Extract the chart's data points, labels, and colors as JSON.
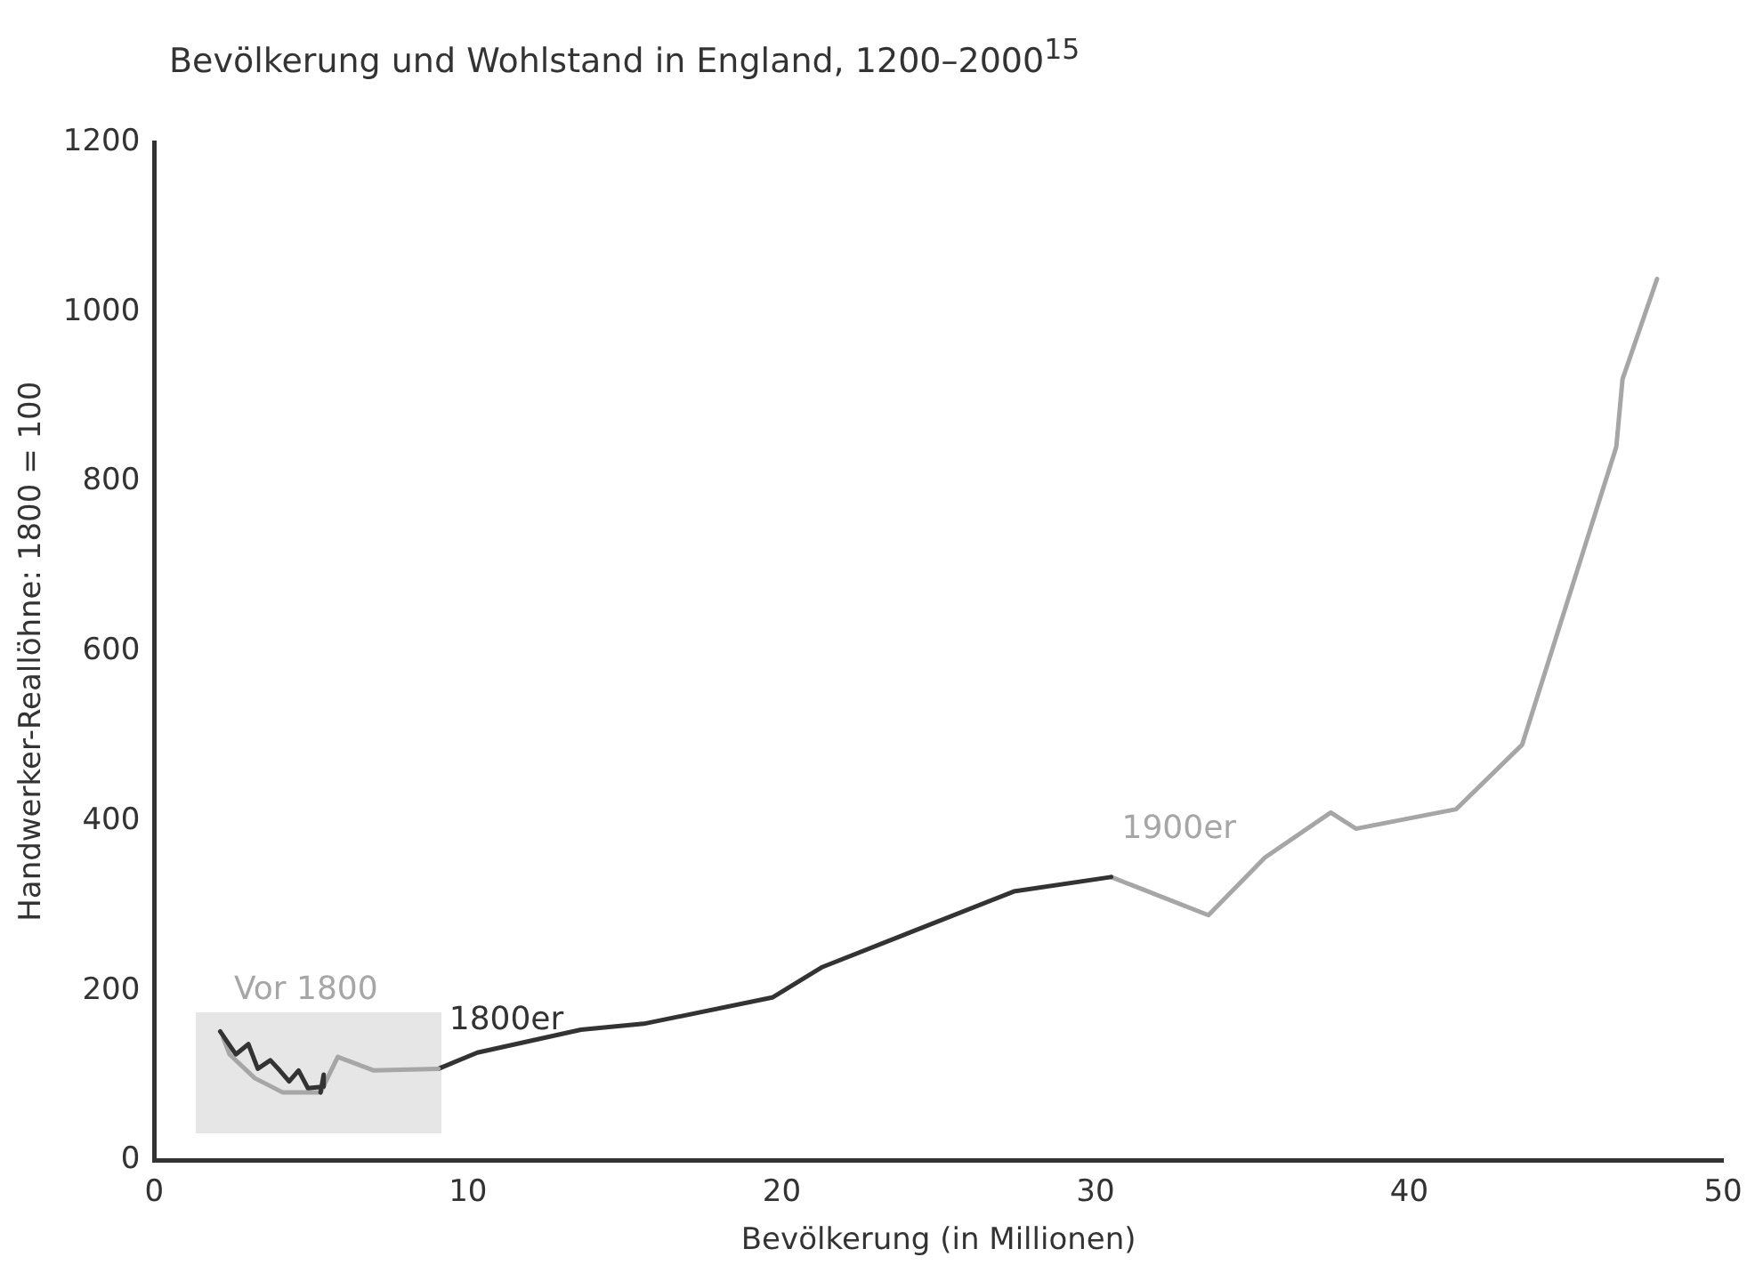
{
  "chart_data": {
    "type": "line",
    "title": "Bevölkerung und Wohlstand in England, 1200–2000$^{15}$",
    "xlabel": "Bevölkerung (in Millionen)",
    "ylabel": "Handwerker-Reallöhne: 1800 = 100",
    "xlim": [
      0,
      50
    ],
    "xticks": [
      0,
      10,
      20,
      30,
      40,
      50
    ],
    "ylim": [
      0,
      1200
    ],
    "yticks": [
      0,
      200,
      400,
      600,
      800,
      1000,
      1200
    ],
    "grid": false,
    "legend": false,
    "marker": "none",
    "line_style": "solid",
    "series": [
      {
        "color": "#333333",
        "x": [
          2.1,
          2.6,
          3.0,
          3.3,
          3.7,
          4.0,
          4.3,
          4.6,
          4.9,
          5.4,
          5.4,
          5.3
        ],
        "values": [
          152,
          125,
          137,
          108,
          118,
          106,
          93,
          106,
          85,
          87,
          101,
          80
        ]
      },
      {
        "name": "Vor 1800",
        "color": "#a6a6a6",
        "x": [
          2.2,
          2.4,
          3.2,
          4.1,
          5.3,
          5.6,
          5.85,
          7.0,
          9.06
        ],
        "values": [
          144,
          125,
          97,
          80,
          80,
          103,
          122,
          106,
          108
        ]
      },
      {
        "name": "1800er",
        "color": "#333333",
        "x": [
          9.06,
          10.3,
          13.6,
          15.6,
          19.7,
          21.3,
          27.4,
          30.5
        ],
        "values": [
          108,
          127,
          154,
          161,
          192,
          228,
          317,
          334
        ]
      },
      {
        "name": "1900er",
        "color": "#a6a6a6",
        "x": [
          30.5,
          33.6,
          35.4,
          37.5,
          38.3,
          41.5,
          43.6,
          46.6,
          46.8,
          47.9
        ],
        "values": [
          334,
          289,
          357,
          410,
          391,
          414,
          490,
          841,
          921,
          1039
        ]
      }
    ]
  }
}
